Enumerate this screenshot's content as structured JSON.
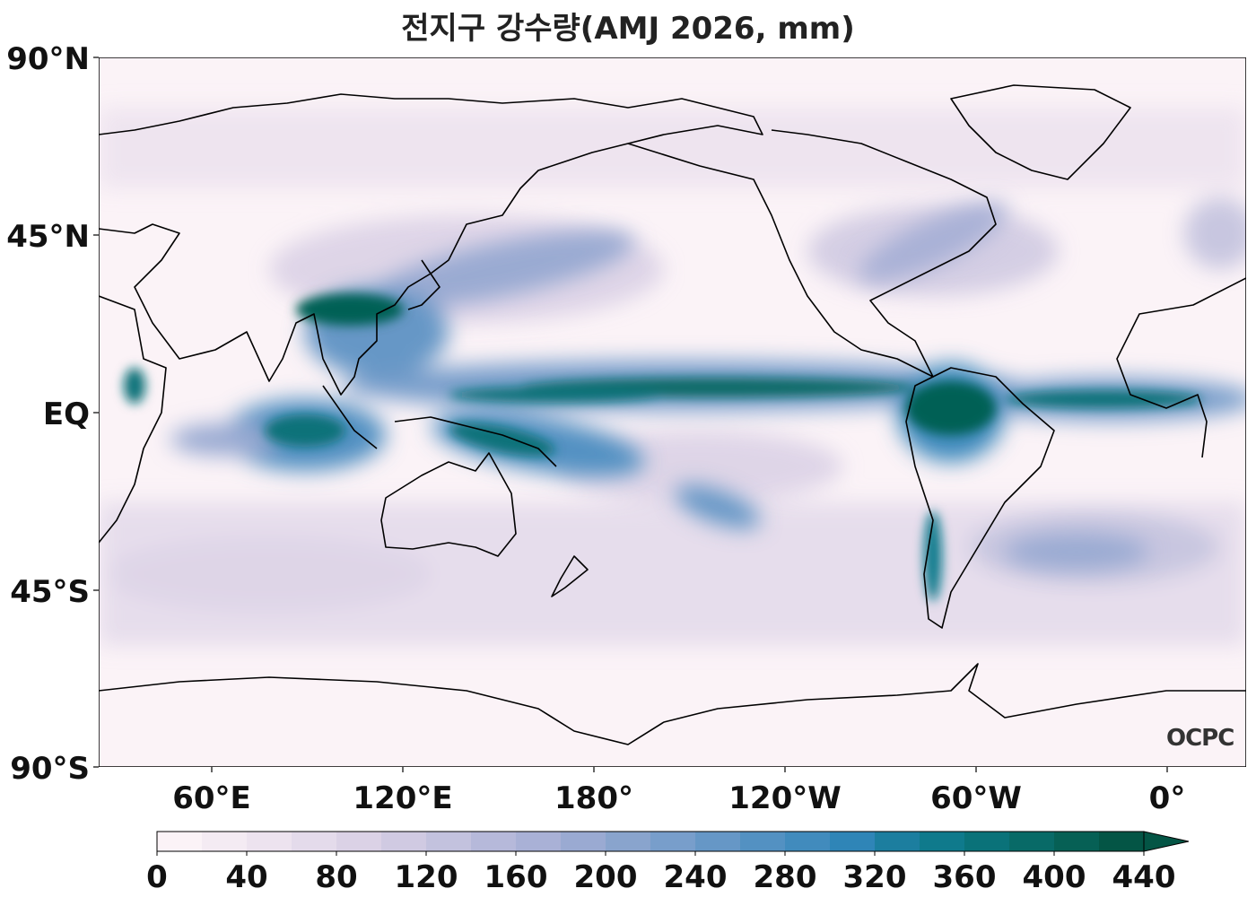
{
  "title": "전지구 강수량(AMJ 2026, mm)",
  "watermark": "OCPC",
  "lat_labels": [
    "90°N",
    "45°N",
    "EQ",
    "45°S",
    "90°S"
  ],
  "lon_labels": [
    "60°E",
    "120°E",
    "180°",
    "120°W",
    "60°W",
    "0°"
  ],
  "colorbar": {
    "ticks": [
      "0",
      "40",
      "80",
      "120",
      "160",
      "200",
      "240",
      "280",
      "320",
      "360",
      "400",
      "440"
    ],
    "levels": [
      0,
      20,
      40,
      60,
      80,
      100,
      120,
      140,
      160,
      180,
      200,
      220,
      240,
      260,
      280,
      300,
      320,
      340,
      360,
      380,
      400,
      420,
      440
    ],
    "colors": [
      "#fbf3f7",
      "#f4ebf3",
      "#ede3ef",
      "#e4dbeb",
      "#dbd2e6",
      "#d0cae2",
      "#c3c2de",
      "#b6b9da",
      "#a9b1d6",
      "#9aaad2",
      "#89a4cd",
      "#789ecb",
      "#6697c6",
      "#5391c2",
      "#418bbd",
      "#2f85b7",
      "#1c7e9f",
      "#0f7a8c",
      "#0a7279",
      "#086a67",
      "#066055",
      "#045545"
    ],
    "extend": "max"
  },
  "colors": {
    "ocean_dry": "#fbf3f7",
    "heavy": "#045545",
    "coast": "#000000"
  }
}
